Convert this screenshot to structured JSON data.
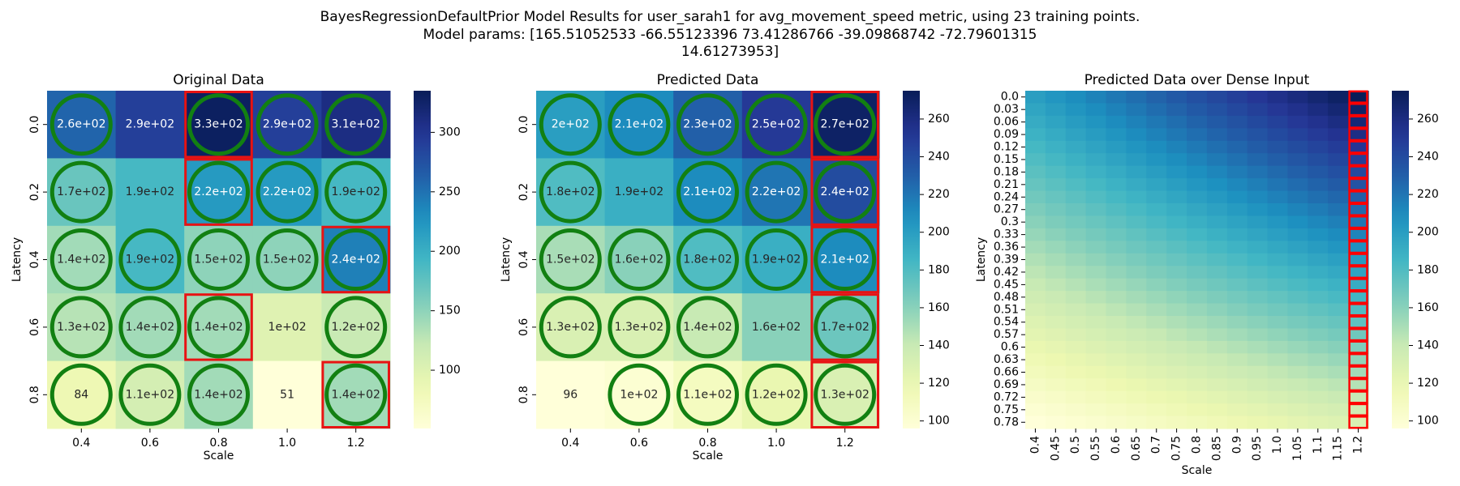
{
  "figure": {
    "title_lines": [
      "BayesRegressionDefaultPrior Model Results for user_sarah1 for avg_movement_speed metric, using 23 training points.",
      "Model params: [165.51052533 -66.55123396  73.41286766 -39.09868742 -72.79601315",
      "14.61273953]"
    ]
  },
  "colormap": {
    "name": "YlGnBu",
    "stops": [
      "#ffffd9",
      "#edf8b1",
      "#c7e9b4",
      "#7fcdbb",
      "#41b6c4",
      "#1d91c0",
      "#225ea8",
      "#253494",
      "#081d58"
    ]
  },
  "marker_colors": {
    "circle": "#128012",
    "box": "#e81313",
    "dense_highlight": "#ff0000"
  },
  "chart_data": [
    {
      "type": "heatmap",
      "title": "Original Data",
      "xlabel": "Scale",
      "ylabel": "Latency",
      "x_categories": [
        "0.4",
        "0.6",
        "0.8",
        "1.0",
        "1.2"
      ],
      "y_categories": [
        "0.0",
        "0.2",
        "0.4",
        "0.6",
        "0.8"
      ],
      "values": [
        [
          260,
          290,
          330,
          290,
          310
        ],
        [
          170,
          190,
          220,
          220,
          190
        ],
        [
          140,
          190,
          150,
          150,
          240
        ],
        [
          130,
          140,
          140,
          100,
          120
        ],
        [
          84,
          110,
          140,
          51,
          140
        ]
      ],
      "annotations": [
        [
          "2.6e+02",
          "2.9e+02",
          "3.3e+02",
          "2.9e+02",
          "3.1e+02"
        ],
        [
          "1.7e+02",
          "1.9e+02",
          "2.2e+02",
          "2.2e+02",
          "1.9e+02"
        ],
        [
          "1.4e+02",
          "1.9e+02",
          "1.5e+02",
          "1.5e+02",
          "2.4e+02"
        ],
        [
          "1.3e+02",
          "1.4e+02",
          "1.4e+02",
          "1e+02",
          "1.2e+02"
        ],
        [
          "84",
          "1.1e+02",
          "1.4e+02",
          "51",
          "1.4e+02"
        ]
      ],
      "circled": [
        [
          1,
          0,
          1,
          1,
          1
        ],
        [
          1,
          0,
          1,
          1,
          1
        ],
        [
          1,
          1,
          1,
          1,
          1
        ],
        [
          1,
          1,
          1,
          0,
          1
        ],
        [
          1,
          1,
          1,
          0,
          1
        ]
      ],
      "boxed": [
        [
          0,
          2
        ],
        [
          1,
          2
        ],
        [
          2,
          4
        ],
        [
          3,
          2
        ],
        [
          4,
          4
        ]
      ],
      "colorbar": {
        "vmin": 51,
        "vmax": 335,
        "ticks": [
          100,
          150,
          200,
          250,
          300
        ]
      }
    },
    {
      "type": "heatmap",
      "title": "Predicted Data",
      "xlabel": "Scale",
      "ylabel": "Latency",
      "x_categories": [
        "0.4",
        "0.6",
        "0.8",
        "1.0",
        "1.2"
      ],
      "y_categories": [
        "0.0",
        "0.2",
        "0.4",
        "0.6",
        "0.8"
      ],
      "values": [
        [
          200,
          210,
          230,
          250,
          270
        ],
        [
          180,
          190,
          210,
          220,
          240
        ],
        [
          150,
          160,
          180,
          190,
          210
        ],
        [
          130,
          130,
          140,
          160,
          170
        ],
        [
          96,
          100,
          110,
          120,
          130
        ]
      ],
      "annotations": [
        [
          "2e+02",
          "2.1e+02",
          "2.3e+02",
          "2.5e+02",
          "2.7e+02"
        ],
        [
          "1.8e+02",
          "1.9e+02",
          "2.1e+02",
          "2.2e+02",
          "2.4e+02"
        ],
        [
          "1.5e+02",
          "1.6e+02",
          "1.8e+02",
          "1.9e+02",
          "2.1e+02"
        ],
        [
          "1.3e+02",
          "1.3e+02",
          "1.4e+02",
          "1.6e+02",
          "1.7e+02"
        ],
        [
          "96",
          "1e+02",
          "1.1e+02",
          "1.2e+02",
          "1.3e+02"
        ]
      ],
      "circled": [
        [
          1,
          1,
          1,
          1,
          1
        ],
        [
          1,
          0,
          1,
          1,
          1
        ],
        [
          1,
          1,
          1,
          1,
          1
        ],
        [
          1,
          1,
          1,
          0,
          1
        ],
        [
          0,
          1,
          1,
          1,
          1
        ]
      ],
      "boxed": [
        [
          0,
          4
        ],
        [
          1,
          4
        ],
        [
          2,
          4
        ],
        [
          3,
          4
        ],
        [
          4,
          4
        ]
      ],
      "colorbar": {
        "vmin": 96,
        "vmax": 275,
        "ticks": [
          100,
          120,
          140,
          160,
          180,
          200,
          220,
          240,
          260
        ]
      }
    },
    {
      "type": "heatmap",
      "title": "Predicted Data over Dense Input",
      "xlabel": "Scale",
      "ylabel": "Latency",
      "x_categories": [
        "0.4",
        "0.45",
        "0.5",
        "0.55",
        "0.6",
        "0.65",
        "0.7",
        "0.75",
        "0.8",
        "0.85",
        "0.9",
        "0.95",
        "1.0",
        "1.05",
        "1.1",
        "1.15",
        "1.2"
      ],
      "y_categories": [
        "0.0",
        "0.03",
        "0.06",
        "0.09",
        "0.12",
        "0.15",
        "0.18",
        "0.21",
        "0.24",
        "0.27",
        "0.3",
        "0.33",
        "0.36",
        "0.39",
        "0.42",
        "0.45",
        "0.48",
        "0.51",
        "0.54",
        "0.57",
        "0.6",
        "0.63",
        "0.66",
        "0.69",
        "0.72",
        "0.75",
        "0.78"
      ],
      "corner_values": {
        "top_left": 200,
        "top_right": 275,
        "bottom_left": 96,
        "bottom_right": 130
      },
      "highlighted_column": "1.2",
      "colorbar": {
        "vmin": 96,
        "vmax": 275,
        "ticks": [
          100,
          120,
          140,
          160,
          180,
          200,
          220,
          240,
          260
        ]
      }
    }
  ]
}
